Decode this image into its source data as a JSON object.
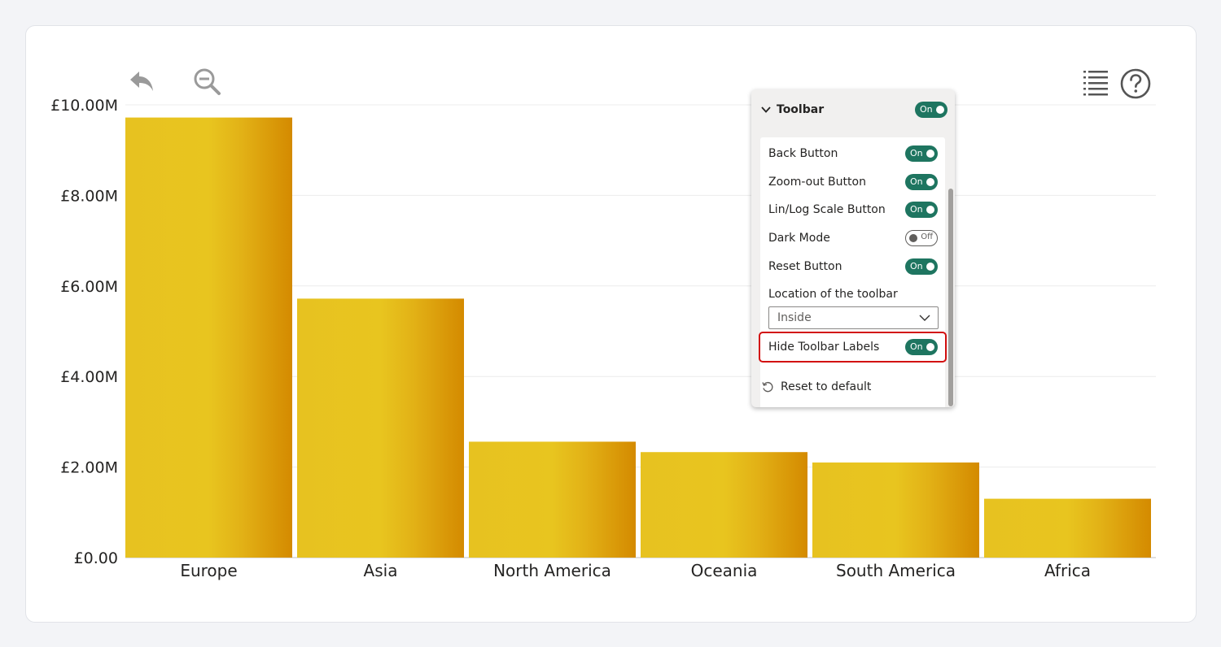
{
  "toolbar_icons": {
    "back": "back-arrow-icon",
    "zoom_out": "zoom-out-icon",
    "legend": "list-icon",
    "help": "help-circle-icon"
  },
  "settings_panel": {
    "header": {
      "title": "Toolbar",
      "toggle": "On"
    },
    "rows": [
      {
        "label": "Back Button",
        "toggle": "On",
        "state": "on"
      },
      {
        "label": "Zoom-out Button",
        "toggle": "On",
        "state": "on"
      },
      {
        "label": "Lin/Log Scale Button",
        "toggle": "On",
        "state": "on"
      },
      {
        "label": "Dark Mode",
        "toggle": "Off",
        "state": "off"
      },
      {
        "label": "Reset Button",
        "toggle": "On",
        "state": "on"
      }
    ],
    "location": {
      "label": "Location of the toolbar",
      "value": "Inside"
    },
    "hide_labels": {
      "label": "Hide Toolbar Labels",
      "toggle": "On",
      "state": "on"
    },
    "reset_label": "Reset to default",
    "colors": {
      "toggle_on": "#1e7560",
      "highlight": "#d20f0f"
    }
  },
  "chart_data": {
    "type": "bar",
    "categories": [
      "Europe",
      "Asia",
      "North America",
      "Oceania",
      "South America",
      "Africa"
    ],
    "values": [
      9.72,
      5.72,
      2.56,
      2.33,
      2.1,
      1.3
    ],
    "yticks": [
      "£0.00",
      "£2.00M",
      "£4.00M",
      "£6.00M",
      "£8.00M",
      "£10.00M"
    ],
    "ylim": [
      0,
      10
    ],
    "unit": "£M",
    "grid": true,
    "colors": {
      "bar_light": "#e8c41f",
      "bar_dark": "#d38a00"
    }
  }
}
